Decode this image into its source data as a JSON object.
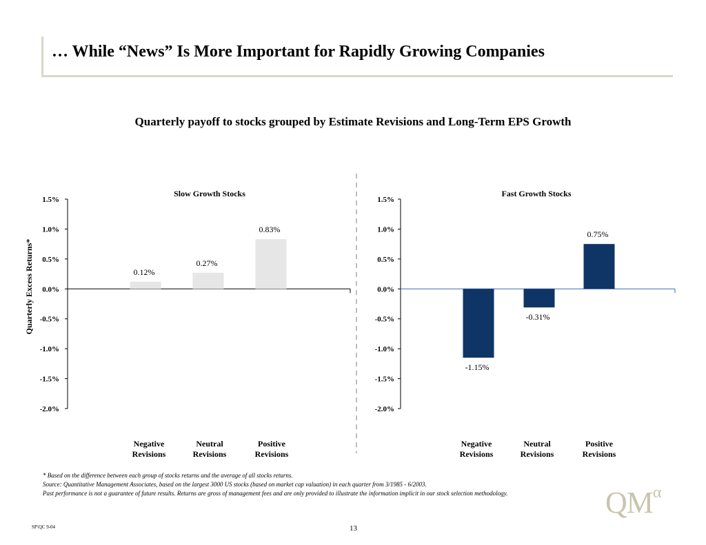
{
  "header": {
    "title": "… While “News” Is More Important for Rapidly Growing Companies",
    "subtitle": "Quarterly payoff to stocks grouped by Estimate Revisions and Long-Term EPS Growth"
  },
  "chart_data": [
    {
      "type": "bar",
      "title": "Slow Growth Stocks",
      "ylabel": "Quarterly Excess Returns*",
      "categories": [
        "Negative Revisions",
        "Neutral Revisions",
        "Positive Revisions"
      ],
      "values": [
        0.12,
        0.27,
        0.83
      ],
      "data_labels": [
        "0.12%",
        "0.27%",
        "0.83%"
      ],
      "ylim": [
        -2.0,
        1.5
      ],
      "yticks": [
        "1.5%",
        "1.0%",
        "0.5%",
        "0.0%",
        "-0.5%",
        "-1.0%",
        "-1.5%",
        "-2.0%"
      ],
      "bar_color": "#e6e6e6"
    },
    {
      "type": "bar",
      "title": "Fast Growth Stocks",
      "categories": [
        "Negative Revisions",
        "Neutral Revisions",
        "Positive Revisions"
      ],
      "values": [
        -1.15,
        -0.31,
        0.75
      ],
      "data_labels": [
        "-1.15%",
        "-0.31%",
        "0.75%"
      ],
      "ylim": [
        -2.0,
        1.5
      ],
      "yticks": [
        "1.5%",
        "1.0%",
        "0.5%",
        "0.0%",
        "-0.5%",
        "-1.0%",
        "-1.5%",
        "-2.0%"
      ],
      "bar_color": "#0f3566"
    }
  ],
  "notes": {
    "line1": "* Based on the difference between each group of stocks returns and the average of all stocks returns.",
    "line2": "Source: Quantitative Management Associates, based on the largest 3000 US stocks (based on market cap valuation) in each quarter from 3/1985 - 6/2003.",
    "line3": "Past performance is not a guarantee of future results. Returns are gross of management fees and are only provided to illustrate the information implicit in our stock selection methodology."
  },
  "footer": {
    "code": "SP\\QC 9-04",
    "page": "13",
    "logo_text": "QM",
    "logo_sup": "α"
  }
}
